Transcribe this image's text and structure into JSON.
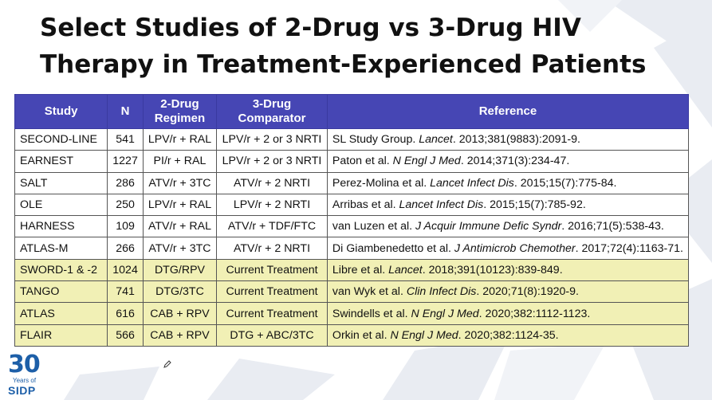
{
  "slide": {
    "title_line1": "Select Studies of 2-Drug vs 3-Drug HIV",
    "title_line2": "Therapy in Treatment-Experienced Patients"
  },
  "table": {
    "headers": {
      "study": "Study",
      "n": "N",
      "two_drug_1": "2-Drug",
      "two_drug_2": "Regimen",
      "three_drug_1": "3-Drug",
      "three_drug_2": "Comparator",
      "reference": "Reference"
    },
    "rows": [
      {
        "study": "SECOND-LINE",
        "n": "541",
        "two": "LPV/r + RAL",
        "three": "LPV/r + 2 or 3 NRTI",
        "ref_pre": "SL Study Group. ",
        "ref_journal": "Lancet",
        "ref_post": ". 2013;381(9883):2091-9."
      },
      {
        "study": "EARNEST",
        "n": "1227",
        "two": "PI/r + RAL",
        "three": "LPV/r + 2 or 3 NRTI",
        "ref_pre": "Paton et al. ",
        "ref_journal": "N Engl J Med",
        "ref_post": ". 2014;371(3):234-47."
      },
      {
        "study": "SALT",
        "n": "286",
        "two": "ATV/r + 3TC",
        "three": "ATV/r + 2 NRTI",
        "ref_pre": "Perez-Molina et al. ",
        "ref_journal": "Lancet Infect Dis",
        "ref_post": ". 2015;15(7):775-84."
      },
      {
        "study": "OLE",
        "n": "250",
        "two": "LPV/r + RAL",
        "three": "LPV/r + 2 NRTI",
        "ref_pre": "Arribas et al. ",
        "ref_journal": "Lancet Infect Dis",
        "ref_post": ". 2015;15(7):785-92."
      },
      {
        "study": "HARNESS",
        "n": "109",
        "two": "ATV/r + RAL",
        "three": "ATV/r + TDF/FTC",
        "ref_pre": "van Luzen et al. ",
        "ref_journal": "J Acquir Immune Defic Syndr",
        "ref_post": ". 2016;71(5):538-43."
      },
      {
        "study": "ATLAS-M",
        "n": "266",
        "two": "ATV/r + 3TC",
        "three": "ATV/r + 2 NRTI",
        "ref_pre": "Di Giambenedetto et al. ",
        "ref_journal": "J Antimicrob Chemother",
        "ref_post": ". 2017;72(4):1163-71."
      },
      {
        "study": "SWORD-1 & -2",
        "n": "1024",
        "two": "DTG/RPV",
        "three": "Current Treatment",
        "ref_pre": "Libre et al. ",
        "ref_journal": "Lancet",
        "ref_post": ". 2018;391(10123):839-849."
      },
      {
        "study": "TANGO",
        "n": "741",
        "two": "DTG/3TC",
        "three": "Current Treatment",
        "ref_pre": "van Wyk et al. ",
        "ref_journal": "Clin Infect Dis",
        "ref_post": ". 2020;71(8):1920-9."
      },
      {
        "study": "ATLAS",
        "n": "616",
        "two": "CAB + RPV",
        "three": "Current Treatment",
        "ref_pre": "Swindells et al. ",
        "ref_journal": "N Engl J Med",
        "ref_post": ". 2020;382:1112-1123."
      },
      {
        "study": "FLAIR",
        "n": "566",
        "two": "CAB + RPV",
        "three": "DTG + ABC/3TC",
        "ref_pre": "Orkin et al. ",
        "ref_journal": "N Engl J Med",
        "ref_post": ". 2020;382:1124-35."
      }
    ]
  },
  "logo": {
    "number": "30",
    "years": "Years of",
    "org": "SIDP"
  },
  "colors": {
    "header_bg": "#4646b4",
    "highlight_row": "#f1f0b5",
    "logo_blue": "#1d5fa8"
  }
}
